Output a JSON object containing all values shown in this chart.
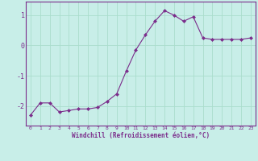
{
  "x": [
    0,
    1,
    2,
    3,
    4,
    5,
    6,
    7,
    8,
    9,
    10,
    11,
    12,
    13,
    14,
    15,
    16,
    17,
    18,
    19,
    20,
    21,
    22,
    23
  ],
  "y": [
    -2.3,
    -1.9,
    -1.9,
    -2.2,
    -2.15,
    -2.1,
    -2.1,
    -2.05,
    -1.85,
    -1.6,
    -0.85,
    -0.15,
    0.35,
    0.8,
    1.15,
    1.0,
    0.8,
    0.95,
    0.25,
    0.2,
    0.2,
    0.2,
    0.2,
    0.25
  ],
  "line_color": "#7B2D8B",
  "marker": "D",
  "marker_size": 2,
  "bg_color": "#C8EEE8",
  "grid_color": "#AADDCC",
  "spine_color": "#7B2D8B",
  "tick_color": "#7B2D8B",
  "label_color": "#7B2D8B",
  "xlabel": "Windchill (Refroidissement éolien,°C)",
  "xlim": [
    -0.5,
    23.5
  ],
  "ylim": [
    -2.65,
    1.45
  ],
  "yticks": [
    -2,
    -1,
    0,
    1
  ],
  "xticks": [
    0,
    1,
    2,
    3,
    4,
    5,
    6,
    7,
    8,
    9,
    10,
    11,
    12,
    13,
    14,
    15,
    16,
    17,
    18,
    19,
    20,
    21,
    22,
    23
  ]
}
